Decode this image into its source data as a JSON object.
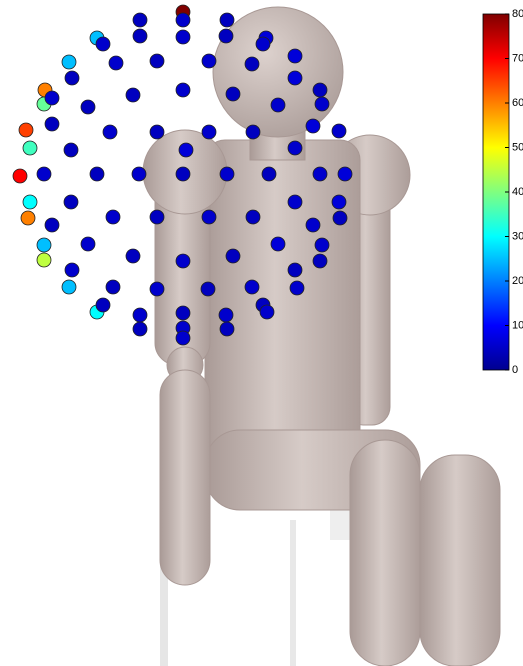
{
  "colorbar": {
    "lim": [
      0,
      80
    ],
    "ticks": [
      0,
      10,
      20,
      30,
      40,
      50,
      60,
      70,
      80
    ]
  },
  "points": {
    "values": [
      80,
      25,
      25,
      60,
      38,
      65,
      35,
      70,
      30,
      60,
      25,
      45,
      25,
      30,
      5,
      6,
      5,
      7,
      6,
      5,
      6,
      5,
      6,
      7,
      5,
      6,
      5,
      6,
      5,
      7,
      6,
      5,
      6,
      5,
      6,
      5,
      6,
      5,
      7,
      6,
      5,
      6,
      5,
      6,
      5,
      6,
      5,
      7,
      6,
      5,
      6,
      5,
      6,
      5,
      6,
      7,
      5,
      6,
      5,
      6,
      5,
      6,
      7,
      5,
      6,
      5,
      6,
      5,
      6,
      5,
      7,
      6,
      5,
      6,
      5,
      6,
      5,
      6,
      5,
      6,
      5,
      6,
      5,
      6,
      5,
      6,
      5,
      6,
      5,
      6
    ]
  }
}
